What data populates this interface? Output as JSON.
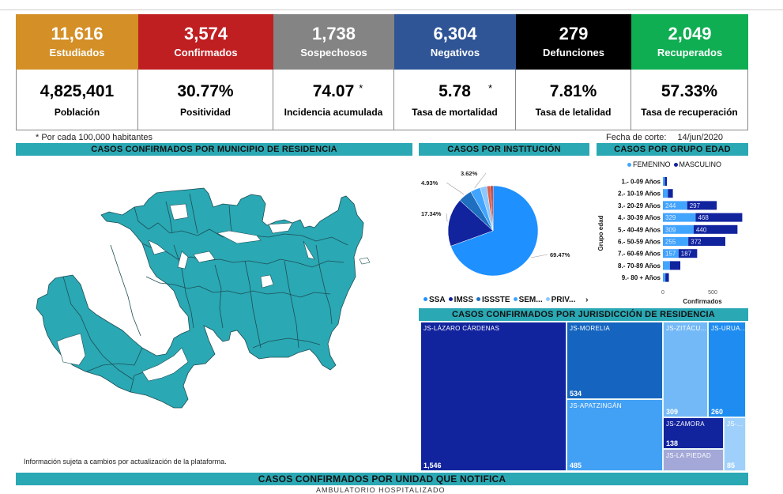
{
  "kpis_top": [
    {
      "value": "11,616",
      "label": "Estudiados",
      "color": "#d48f27"
    },
    {
      "value": "3,574",
      "label": "Confirmados",
      "color": "#c01f22"
    },
    {
      "value": "1,738",
      "label": "Sospechosos",
      "color": "#848484"
    },
    {
      "value": "6,304",
      "label": "Negativos",
      "color": "#2f5597"
    },
    {
      "value": "279",
      "label": "Defunciones",
      "color": "#000000"
    },
    {
      "value": "2,049",
      "label": "Recuperados",
      "color": "#0fae52"
    }
  ],
  "kpis_bottom": [
    {
      "value": "4,825,401",
      "label": "Población",
      "asterisk": ""
    },
    {
      "value": "30.77%",
      "label": "Positividad",
      "asterisk": ""
    },
    {
      "value": "74.07",
      "label": "Incidencia acumulada",
      "asterisk": "*"
    },
    {
      "value": "5.78",
      "label": "Tasa de mortalidad",
      "asterisk": "*"
    },
    {
      "value": "7.81%",
      "label": "Tasa de letalidad",
      "asterisk": ""
    },
    {
      "value": "57.33%",
      "label": "Tasa de recuperación",
      "asterisk": ""
    }
  ],
  "footnote": "* Por cada 100,000 habitantes",
  "fecha": {
    "label": "Fecha de corte:",
    "value": "14/jun/2020"
  },
  "sections": {
    "municipio": "CASOS CONFIRMADOS POR MUNICIPIO DE RESIDENCIA",
    "institucion": "CASOS POR INSTITUCIÓN",
    "edad": "CASOS POR GRUPO EDAD",
    "jurisdiccion": "CASOS CONFIRMADOS POR JURISDICCIÓN DE RESIDENCIA",
    "unidad": "CASOS CONFIRMADOS POR UNIDAD QUE NOTIFICA"
  },
  "disclaimer": "Información sujeta a cambios por actualización de la plataforma.",
  "bottom_cut_text": "AMBULATORIO    HOSPITALIZADO",
  "chart_data": [
    {
      "type": "pie",
      "title": "CASOS POR INSTITUCIÓN",
      "legend": [
        "SSA",
        "IMSS",
        "ISSSTE",
        "SEM...",
        "PRIV..."
      ],
      "legend_more": "›",
      "slices": [
        {
          "name": "SSA",
          "value": 69.47,
          "label": "69.47%",
          "color": "#1e90ff"
        },
        {
          "name": "IMSS",
          "value": 17.34,
          "label": "17.34%",
          "color": "#12239e"
        },
        {
          "name": "ISSSTE",
          "value": 4.93,
          "label": "4.93%",
          "color": "#1f6fc0"
        },
        {
          "name": "SEM...",
          "value": 3.62,
          "label": "3.62%",
          "color": "#41a4ff"
        },
        {
          "name": "PRIV...",
          "value": 2.4,
          "label": "",
          "color": "#8cc8ff"
        },
        {
          "name": "Otro1",
          "value": 1.4,
          "label": "",
          "color": "#d9604c"
        },
        {
          "name": "Otro2",
          "value": 0.84,
          "label": "",
          "color": "#c01f22"
        }
      ]
    },
    {
      "type": "bar",
      "orientation": "horizontal-stacked",
      "title": "CASOS POR GRUPO EDAD",
      "ylabel": "Grupo edad",
      "xlabel": "Confirmados",
      "xticks": [
        0,
        500
      ],
      "xlim": [
        0,
        900
      ],
      "categories": [
        "1.- 0-09 Años",
        "2.- 10-19 Años",
        "3.- 20-29 Años",
        "4.- 30-39 Años",
        "5.- 40-49 Años",
        "6.- 50-59 Años",
        "7.- 60-69 Años",
        "8.- 70-89 Años",
        "9.- 80 + Años"
      ],
      "series": [
        {
          "name": "FEMENINO",
          "color": "#41a4ff",
          "values": [
            20,
            50,
            244,
            329,
            309,
            255,
            157,
            70,
            25
          ],
          "labels": [
            "",
            "",
            "244",
            "329",
            "309",
            "255",
            "157",
            "",
            ""
          ]
        },
        {
          "name": "MASCULINO",
          "color": "#12239e",
          "values": [
            20,
            50,
            297,
            468,
            440,
            372,
            187,
            105,
            35
          ],
          "labels": [
            "",
            "",
            "297",
            "468",
            "440",
            "372",
            "187",
            "",
            ""
          ]
        }
      ]
    },
    {
      "type": "treemap",
      "title": "CASOS CONFIRMADOS POR JURISDICCIÓN DE RESIDENCIA",
      "items": [
        {
          "name": "JS-LÁZARO CÁRDENAS",
          "value": "1,546",
          "color": "#12239e"
        },
        {
          "name": "JS-MORELIA",
          "value": "534",
          "color": "#1565c0"
        },
        {
          "name": "JS-APATZINGÁN",
          "value": "485",
          "color": "#42a0f5"
        },
        {
          "name": "JS-ZITÁCU...",
          "value": "309",
          "color": "#74b9f7"
        },
        {
          "name": "JS-URUA...",
          "value": "260",
          "color": "#1e8cf0"
        },
        {
          "name": "JS-ZAMORA",
          "value": "138",
          "color": "#12239e"
        },
        {
          "name": "JS-LA PIEDAD",
          "value": "",
          "color": "#a3a8d8"
        },
        {
          "name": "JS-...",
          "value": "85",
          "color": "#9fd0fb"
        }
      ]
    }
  ]
}
